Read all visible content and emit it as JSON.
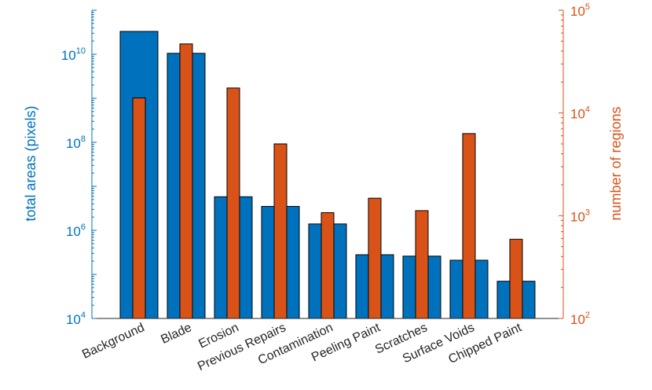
{
  "chart_data": {
    "type": "bar",
    "categories": [
      "Background",
      "Blade",
      "Erosion",
      "Previous Repairs",
      "Contamination",
      "Peeling Paint",
      "Scratches",
      "Surface Voids",
      "Chipped Paint"
    ],
    "series": [
      {
        "name": "",
        "axis": "left",
        "color": "#0072BD",
        "values": [
          33000000000,
          10500000000,
          5800000,
          3500000,
          1400000,
          280000,
          260000,
          210000,
          70000
        ]
      },
      {
        "name": "",
        "axis": "right",
        "color": "#D95319",
        "values": [
          14000,
          47000,
          17500,
          5000,
          1070,
          1480,
          1120,
          6300,
          590
        ]
      }
    ],
    "xlabel": "",
    "ylabel_left": "total areas (pixels)",
    "ylabel_right": "number of regions",
    "y_left": {
      "scale": "log",
      "lim": [
        10000,
        100000000000
      ],
      "ticks": [
        {
          "base": "10",
          "exp": "4"
        },
        {
          "base": "10",
          "exp": "6"
        },
        {
          "base": "10",
          "exp": "8"
        },
        {
          "base": "10",
          "exp": "10"
        }
      ]
    },
    "y_right": {
      "scale": "log",
      "lim": [
        100,
        100000
      ],
      "ticks": [
        {
          "base": "10",
          "exp": "2"
        },
        {
          "base": "10",
          "exp": "3"
        },
        {
          "base": "10",
          "exp": "4"
        },
        {
          "base": "10",
          "exp": "5"
        }
      ]
    },
    "grid": false
  }
}
